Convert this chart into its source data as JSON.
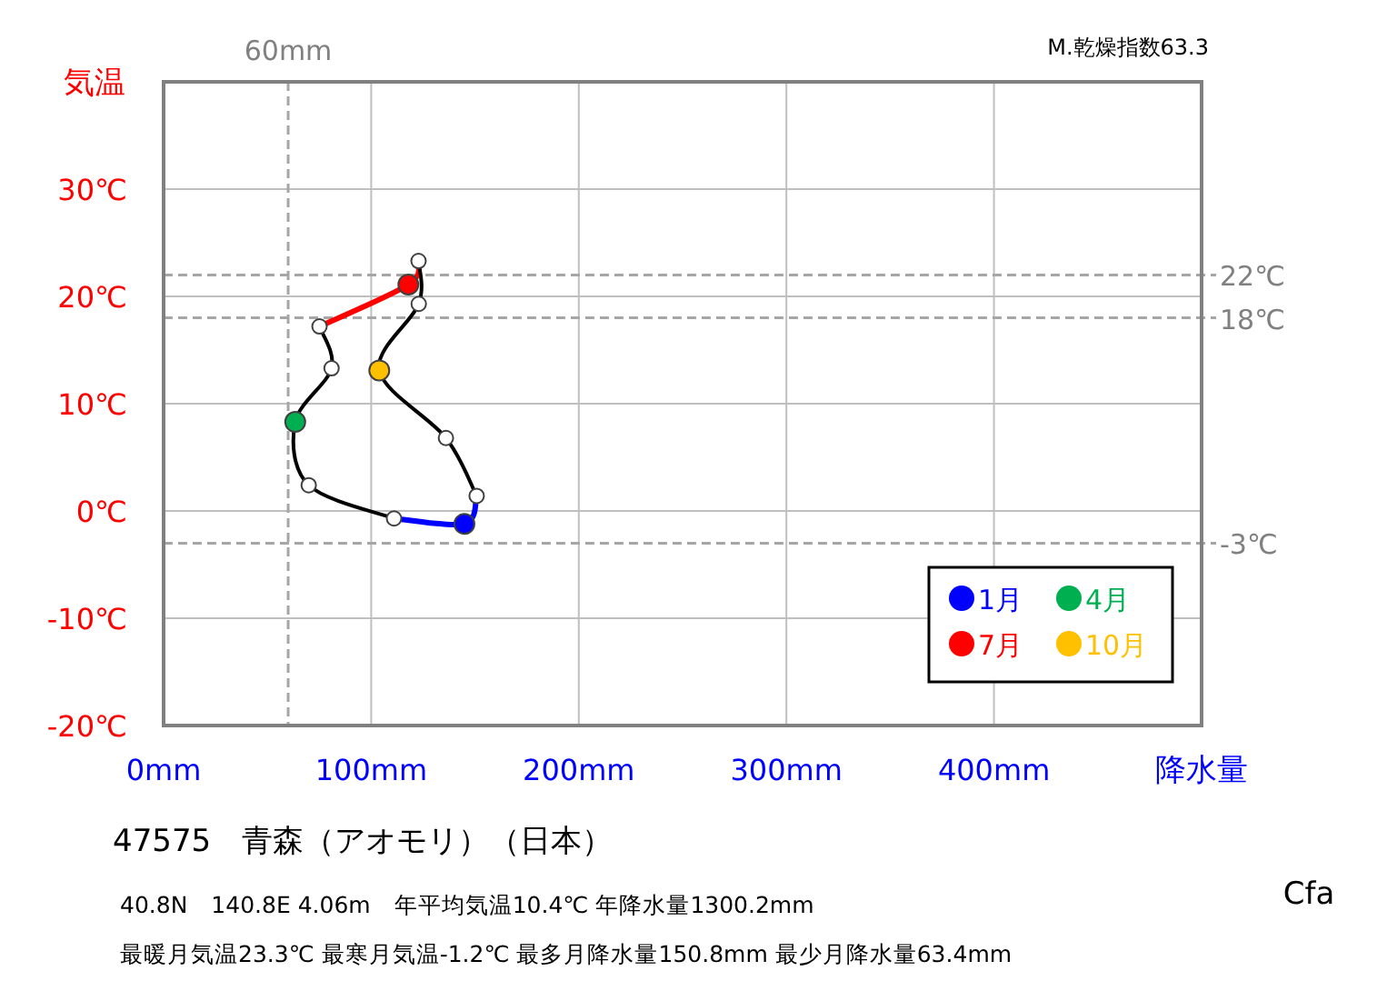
{
  "chart_data": {
    "type": "line",
    "title": "47575　青森（アオモリ）（日本）",
    "xlabel": "降水量",
    "ylabel": "気温",
    "xlim": [
      0,
      500
    ],
    "ylim": [
      -20,
      40
    ],
    "xticks": [
      {
        "value": 0,
        "label": "0mm"
      },
      {
        "value": 100,
        "label": "100mm"
      },
      {
        "value": 200,
        "label": "200mm"
      },
      {
        "value": 300,
        "label": "300mm"
      },
      {
        "value": 400,
        "label": "400mm"
      },
      {
        "value": 500,
        "label": null
      }
    ],
    "yticks": [
      {
        "value": -20,
        "label": "-20℃"
      },
      {
        "value": -10,
        "label": "-10℃"
      },
      {
        "value": 0,
        "label": "0℃"
      },
      {
        "value": 10,
        "label": "10℃"
      },
      {
        "value": 20,
        "label": "20℃"
      },
      {
        "value": 30,
        "label": "30℃"
      },
      {
        "value": 40,
        "label": null
      }
    ],
    "grid": true,
    "legend": "bottom right",
    "series": [
      {
        "type": "line",
        "color": "#000000",
        "marker": "none",
        "x": [
          111.0,
          69.9,
          63.4,
          80.9,
          75.1
        ],
        "values": [
          -0.7,
          2.4,
          8.3,
          13.3,
          17.2
        ]
      },
      {
        "type": "line",
        "color": "#ff0000",
        "marker": "none",
        "x": [
          75.1,
          117.9,
          122.8
        ],
        "values": [
          17.2,
          21.1,
          23.3
        ]
      },
      {
        "type": "line",
        "color": "#000000",
        "marker": "none",
        "x": [
          122.8,
          122.9,
          103.9,
          136.0,
          150.8
        ],
        "values": [
          23.3,
          19.3,
          13.1,
          6.8,
          1.4
        ]
      },
      {
        "type": "line",
        "color": "#0000ff",
        "marker": "none",
        "x": [
          150.8,
          144.9,
          111.0
        ],
        "values": [
          1.4,
          -1.2,
          -0.7
        ]
      },
      {
        "type": "scatter",
        "color": "#ffffff",
        "marker": "circle",
        "x": [
          111.0,
          69.9,
          80.9,
          75.1,
          122.8,
          122.9,
          136.0,
          150.8
        ],
        "values": [
          -0.7,
          2.4,
          13.3,
          17.2,
          23.3,
          19.3,
          6.8,
          1.4
        ]
      },
      {
        "type": "scatter",
        "name": "1月",
        "color": "#0000ff",
        "marker": "circle",
        "x": [
          144.9
        ],
        "values": [
          -1.2
        ]
      },
      {
        "type": "scatter",
        "name": "4月",
        "color": "#00b050",
        "marker": "circle",
        "x": [
          63.4
        ],
        "values": [
          8.3
        ]
      },
      {
        "type": "scatter",
        "name": "7月",
        "color": "#ff0000",
        "marker": "circle",
        "x": [
          117.9
        ],
        "values": [
          21.1
        ]
      },
      {
        "type": "scatter",
        "name": "10月",
        "color": "#ffc000",
        "marker": "circle",
        "x": [
          103.9
        ],
        "values": [
          13.1
        ]
      }
    ],
    "ref_lines": [
      {
        "axis": "x",
        "value": 60,
        "label": "60mm",
        "color": "#a6a6a6",
        "line_style": "dashed"
      },
      {
        "axis": "y",
        "value": 22,
        "label": "22℃",
        "color": "#a6a6a6",
        "line_style": "dashed"
      },
      {
        "axis": "y",
        "value": 18,
        "label": "18℃",
        "color": "#a6a6a6",
        "line_style": "dashed"
      },
      {
        "axis": "y",
        "value": -3,
        "label": "-3℃",
        "color": "#a6a6a6",
        "line_style": "dashed"
      }
    ],
    "annotations": [
      "M.乾燥指数63.3",
      "40.8N　140.8E 4.06m　年平均気温10.4℃ 年降水量1300.2mm",
      "最暖月気温23.3℃ 最寒月気温-1.2℃ 最多月降水量150.8mm 最少月降水量63.4mm",
      "Cfa"
    ]
  }
}
